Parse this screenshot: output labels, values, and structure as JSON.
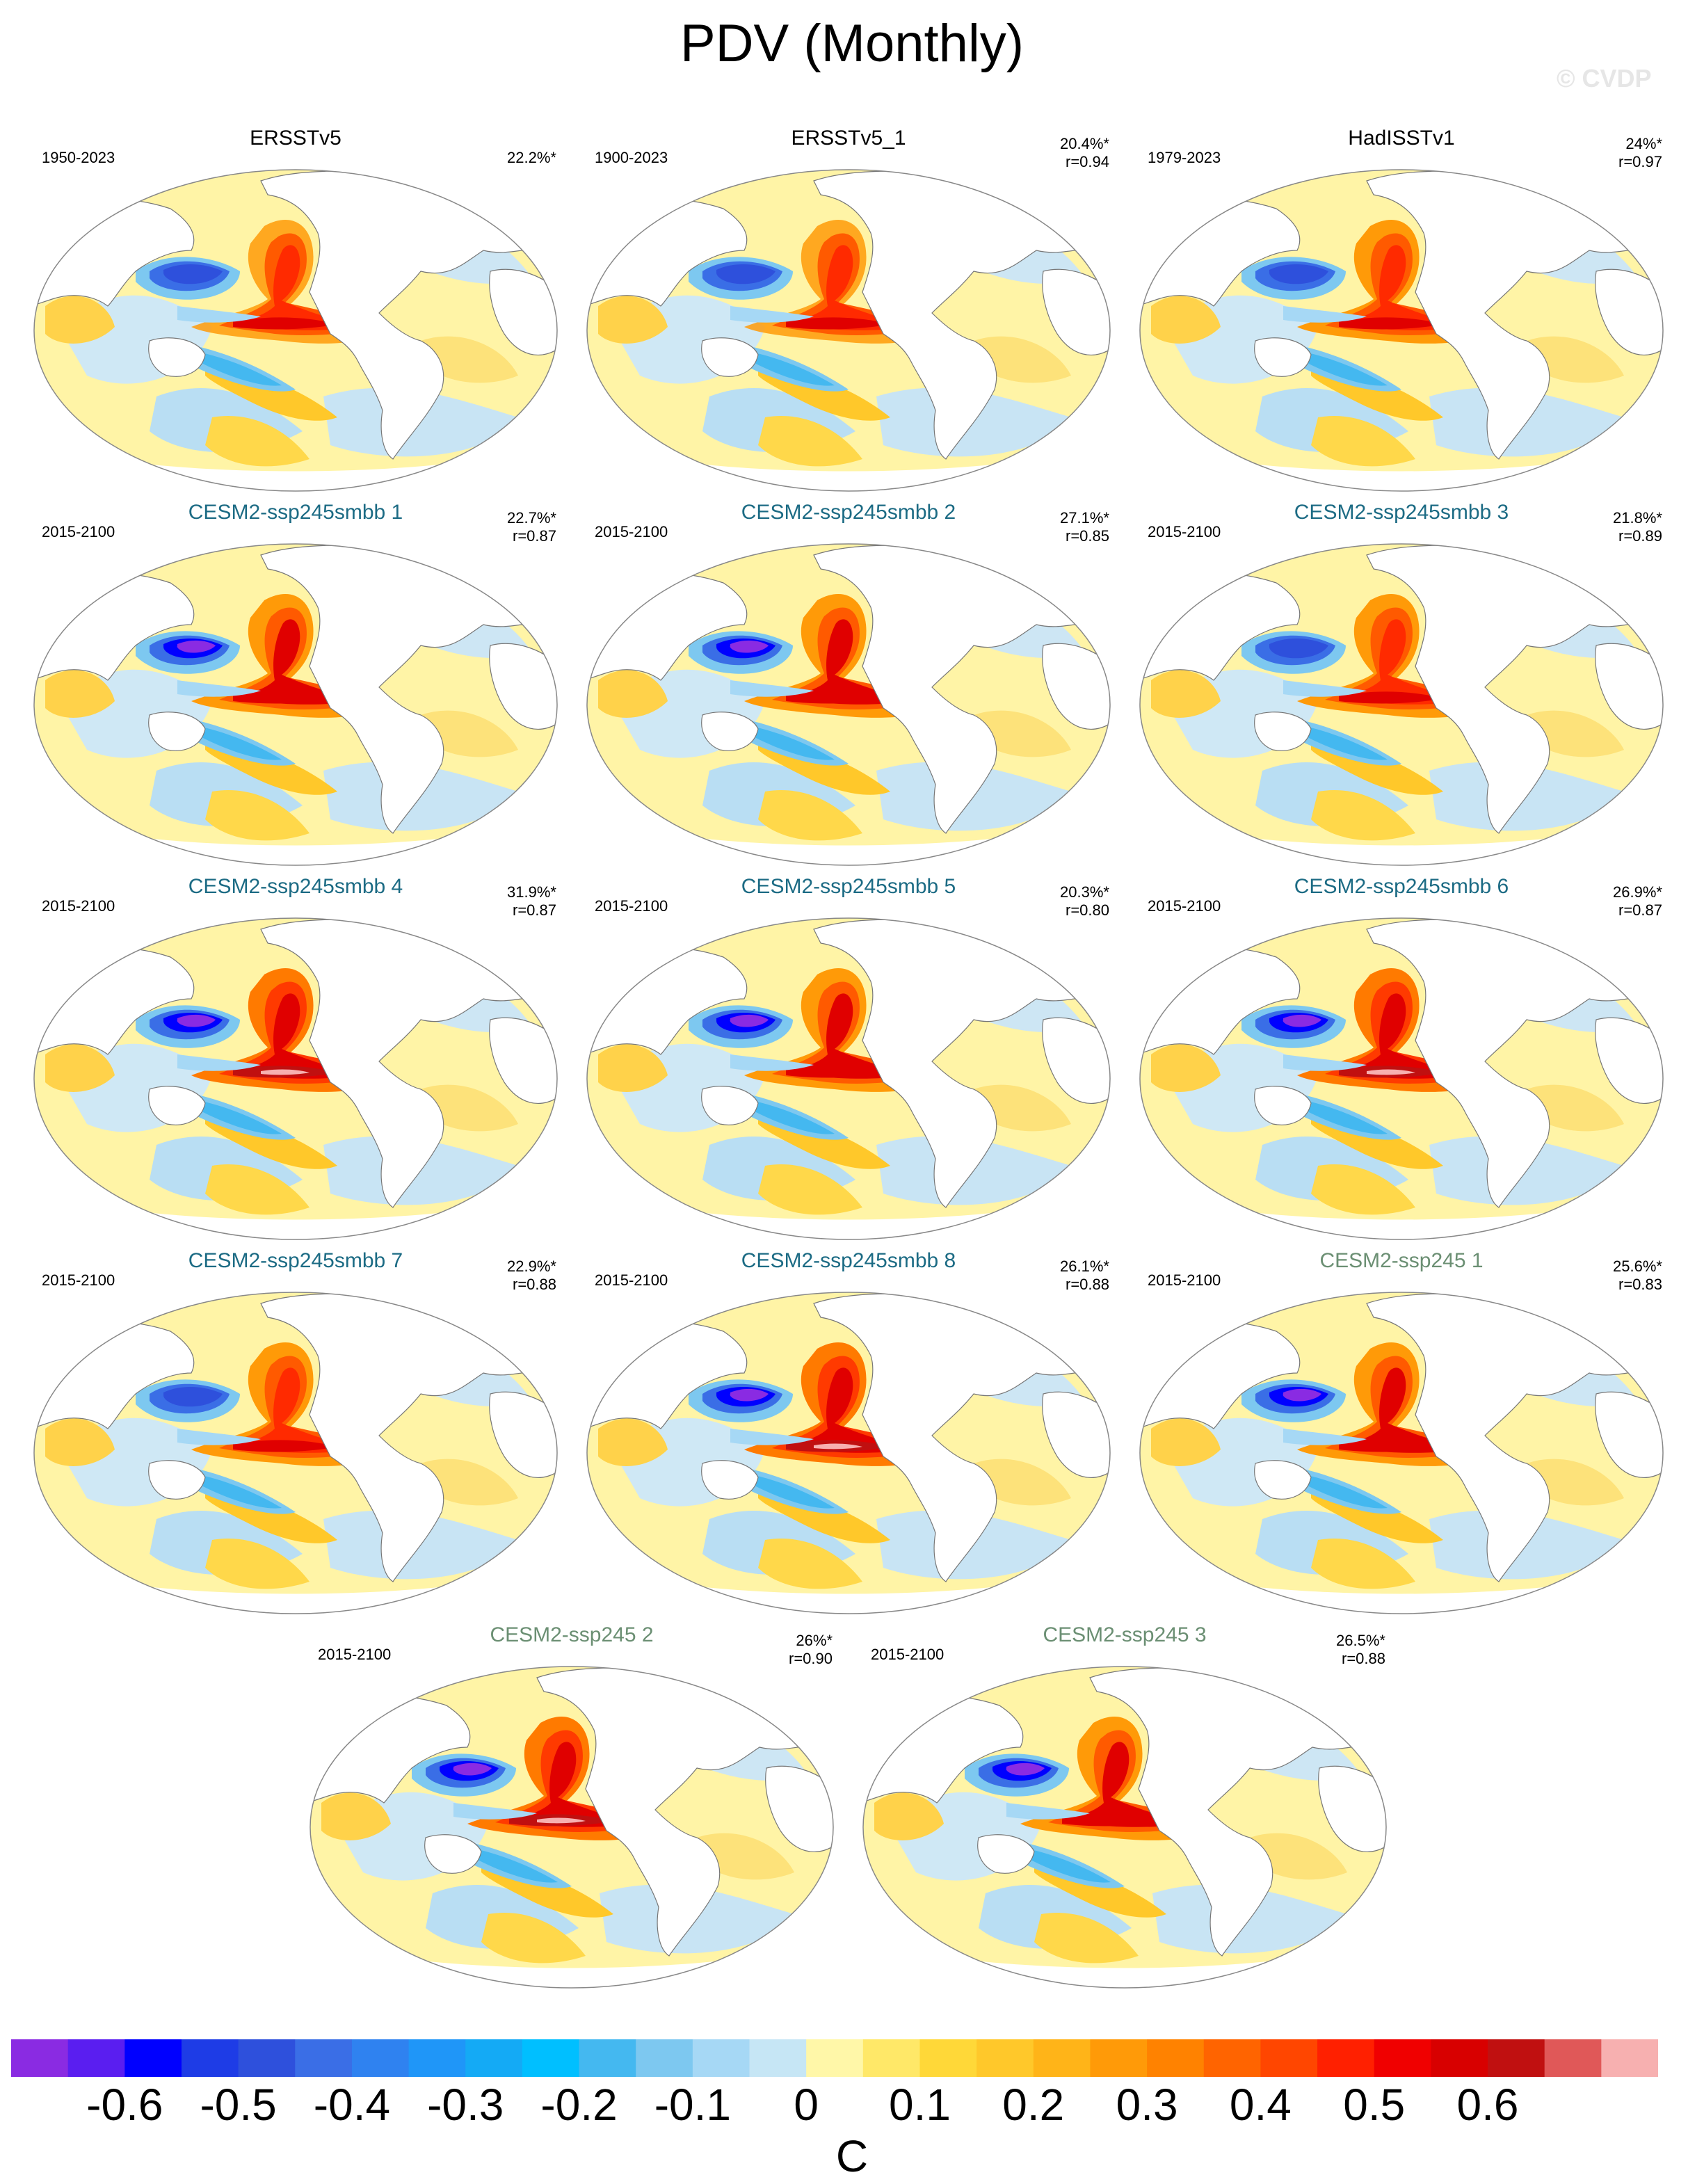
{
  "figure": {
    "title": "PDV (Monthly)",
    "watermark": "© CVDP",
    "units": "C"
  },
  "panels": [
    {
      "title": "ERSSTv5",
      "period": "1950-2023",
      "pct": "22.2%*",
      "r": "",
      "title_color": "#000000",
      "variant": 0
    },
    {
      "title": "ERSSTv5_1",
      "period": "1900-2023",
      "pct": "20.4%*",
      "r": "r=0.94",
      "title_color": "#000000",
      "variant": 0
    },
    {
      "title": "HadISSTv1",
      "period": "1979-2023",
      "pct": "24%*",
      "r": "r=0.97",
      "title_color": "#000000",
      "variant": 1
    },
    {
      "title": "CESM2-ssp245smbb 1",
      "period": "2015-2100",
      "pct": "22.7%*",
      "r": "r=0.87",
      "title_color": "#1c6b84",
      "variant": 2
    },
    {
      "title": "CESM2-ssp245smbb 2",
      "period": "2015-2100",
      "pct": "27.1%*",
      "r": "r=0.85",
      "title_color": "#1c6b84",
      "variant": 2
    },
    {
      "title": "CESM2-ssp245smbb 3",
      "period": "2015-2100",
      "pct": "21.8%*",
      "r": "r=0.89",
      "title_color": "#1c6b84",
      "variant": 1
    },
    {
      "title": "CESM2-ssp245smbb 4",
      "period": "2015-2100",
      "pct": "31.9%*",
      "r": "r=0.87",
      "title_color": "#1c6b84",
      "variant": 3
    },
    {
      "title": "CESM2-ssp245smbb 5",
      "period": "2015-2100",
      "pct": "20.3%*",
      "r": "r=0.80",
      "title_color": "#1c6b84",
      "variant": 2
    },
    {
      "title": "CESM2-ssp245smbb 6",
      "period": "2015-2100",
      "pct": "26.9%*",
      "r": "r=0.87",
      "title_color": "#1c6b84",
      "variant": 3
    },
    {
      "title": "CESM2-ssp245smbb 7",
      "period": "2015-2100",
      "pct": "22.9%*",
      "r": "r=0.88",
      "title_color": "#1c6b84",
      "variant": 1
    },
    {
      "title": "CESM2-ssp245smbb 8",
      "period": "2015-2100",
      "pct": "26.1%*",
      "r": "r=0.88",
      "title_color": "#1c6b84",
      "variant": 3
    },
    {
      "title": "CESM2-ssp245 1",
      "period": "2015-2100",
      "pct": "25.6%*",
      "r": "r=0.83",
      "title_color": "#6b8f73",
      "variant": 2
    },
    {
      "title": "CESM2-ssp245 2",
      "period": "2015-2100",
      "pct": "26%*",
      "r": "r=0.90",
      "title_color": "#6b8f73",
      "variant": 3
    },
    {
      "title": "CESM2-ssp245 3",
      "period": "2015-2100",
      "pct": "26.5%*",
      "r": "r=0.88",
      "title_color": "#6b8f73",
      "variant": 2
    }
  ],
  "colorbar": {
    "colors": [
      "#8a2be2",
      "#5a1ef0",
      "#0000ff",
      "#1e3ce6",
      "#2e50dc",
      "#3a6ee6",
      "#2f82f0",
      "#1f96f8",
      "#14aaf5",
      "#00bfff",
      "#44b8f0",
      "#7dc8f0",
      "#a6d8f5",
      "#c6e6f5",
      "#fff7a8",
      "#ffe868",
      "#ffd838",
      "#ffc82a",
      "#ffb418",
      "#ff9a08",
      "#ff8200",
      "#ff6400",
      "#ff4600",
      "#ff2000",
      "#f00000",
      "#d80000",
      "#c01010",
      "#e05858",
      "#f7b0b0"
    ],
    "tick_labels": [
      "-0.6",
      "-0.5",
      "-0.4",
      "-0.3",
      "-0.2",
      "-0.1",
      "0",
      "0.1",
      "0.2",
      "0.3",
      "0.4",
      "0.5",
      "0.6"
    ]
  }
}
